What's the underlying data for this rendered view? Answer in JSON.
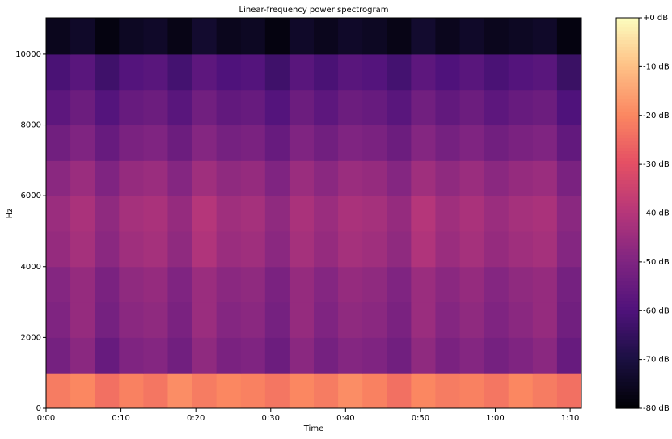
{
  "chart_data": {
    "type": "heatmap",
    "title": "Linear-frequency power spectrogram",
    "xlabel": "Time",
    "ylabel": "Hz",
    "colormap": "magma",
    "xlim": [
      0,
      71.5
    ],
    "ylim": [
      0,
      11025
    ],
    "xticks": [
      {
        "value": 0,
        "label": "0:00"
      },
      {
        "value": 10,
        "label": "0:10"
      },
      {
        "value": 20,
        "label": "0:20"
      },
      {
        "value": 30,
        "label": "0:30"
      },
      {
        "value": 40,
        "label": "0:40"
      },
      {
        "value": 50,
        "label": "0:50"
      },
      {
        "value": 60,
        "label": "1:00"
      },
      {
        "value": 70,
        "label": "1:10"
      }
    ],
    "yticks": [
      0,
      2000,
      4000,
      6000,
      8000,
      10000
    ],
    "clim": [
      -80,
      0
    ],
    "cticks": [
      {
        "value": 0,
        "label": "+0 dB"
      },
      {
        "value": -10,
        "label": "-10 dB"
      },
      {
        "value": -20,
        "label": "-20 dB"
      },
      {
        "value": -30,
        "label": "-30 dB"
      },
      {
        "value": -40,
        "label": "-40 dB"
      },
      {
        "value": -50,
        "label": "-50 dB"
      },
      {
        "value": -60,
        "label": "-60 dB"
      },
      {
        "value": -70,
        "label": "-70 dB"
      },
      {
        "value": -80,
        "label": "-80 dB"
      }
    ],
    "xbins": [
      0,
      3.25,
      6.5,
      9.75,
      13,
      16.25,
      19.5,
      22.75,
      26,
      29.25,
      32.5,
      35.75,
      39,
      42.25,
      45.5,
      48.75,
      52,
      55.25,
      58.5,
      61.75,
      65,
      68.25,
      71.5
    ],
    "ybins": [
      0,
      1000,
      2000,
      3000,
      4000,
      5000,
      6000,
      7000,
      8000,
      9000,
      10000,
      11025
    ],
    "values": [
      [
        -22,
        -20,
        -24,
        -21,
        -23,
        -19,
        -22,
        -20,
        -21,
        -23,
        -20,
        -22,
        -19,
        -21,
        -24,
        -20,
        -22,
        -21,
        -23,
        -20,
        -22,
        -24
      ],
      [
        -52,
        -48,
        -55,
        -50,
        -49,
        -53,
        -47,
        -51,
        -50,
        -54,
        -48,
        -52,
        -49,
        -50,
        -53,
        -47,
        -51,
        -49,
        -52,
        -50,
        -48,
        -55
      ],
      [
        -50,
        -46,
        -52,
        -48,
        -47,
        -51,
        -45,
        -49,
        -48,
        -52,
        -46,
        -50,
        -47,
        -48,
        -51,
        -45,
        -49,
        -47,
        -50,
        -48,
        -46,
        -53
      ],
      [
        -49,
        -46,
        -51,
        -47,
        -46,
        -50,
        -45,
        -48,
        -47,
        -51,
        -46,
        -49,
        -46,
        -47,
        -50,
        -45,
        -48,
        -46,
        -49,
        -47,
        -46,
        -52
      ],
      [
        -46,
        -43,
        -48,
        -44,
        -43,
        -47,
        -41,
        -45,
        -44,
        -48,
        -43,
        -46,
        -43,
        -44,
        -47,
        -41,
        -45,
        -43,
        -46,
        -44,
        -43,
        -49
      ],
      [
        -45,
        -42,
        -47,
        -43,
        -42,
        -46,
        -40,
        -44,
        -43,
        -47,
        -42,
        -45,
        -42,
        -43,
        -46,
        -40,
        -44,
        -42,
        -45,
        -43,
        -42,
        -48
      ],
      [
        -48,
        -45,
        -50,
        -46,
        -45,
        -49,
        -44,
        -47,
        -46,
        -50,
        -45,
        -48,
        -45,
        -46,
        -49,
        -44,
        -47,
        -45,
        -48,
        -46,
        -45,
        -51
      ],
      [
        -53,
        -50,
        -55,
        -51,
        -50,
        -54,
        -49,
        -52,
        -51,
        -55,
        -50,
        -53,
        -50,
        -51,
        -54,
        -49,
        -52,
        -50,
        -53,
        -51,
        -50,
        -56
      ],
      [
        -57,
        -54,
        -59,
        -55,
        -54,
        -58,
        -53,
        -56,
        -55,
        -59,
        -54,
        -57,
        -54,
        -55,
        -58,
        -53,
        -56,
        -54,
        -57,
        -55,
        -54,
        -60
      ],
      [
        -61,
        -58,
        -63,
        -59,
        -58,
        -62,
        -57,
        -60,
        -59,
        -63,
        -58,
        -61,
        -58,
        -59,
        -62,
        -57,
        -60,
        -58,
        -61,
        -59,
        -58,
        -64
      ],
      [
        -76,
        -74,
        -78,
        -75,
        -74,
        -77,
        -73,
        -76,
        -75,
        -78,
        -74,
        -76,
        -74,
        -75,
        -77,
        -73,
        -76,
        -74,
        -76,
        -75,
        -74,
        -78
      ]
    ]
  }
}
